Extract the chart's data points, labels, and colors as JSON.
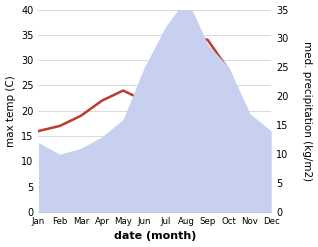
{
  "months": [
    "Jan",
    "Feb",
    "Mar",
    "Apr",
    "May",
    "Jun",
    "Jul",
    "Aug",
    "Sep",
    "Oct",
    "Nov",
    "Dec"
  ],
  "max_temp": [
    16,
    17,
    19,
    22,
    24,
    22,
    34,
    35,
    34,
    28,
    17,
    15
  ],
  "precipitation": [
    12,
    10,
    11,
    13,
    16,
    25,
    32,
    37,
    29,
    25,
    17,
    14
  ],
  "temp_color": "#c0392b",
  "precip_fill_color": "#c8d0f0",
  "temp_ylim": [
    0,
    40
  ],
  "precip_ylim": [
    0,
    35
  ],
  "xlabel": "date (month)",
  "ylabel_left": "max temp (C)",
  "ylabel_right": "med. precipitation (kg/m2)",
  "background_color": "#ffffff",
  "temp_linewidth": 1.8,
  "xlabel_fontsize": 8,
  "ylabel_fontsize": 7.5
}
